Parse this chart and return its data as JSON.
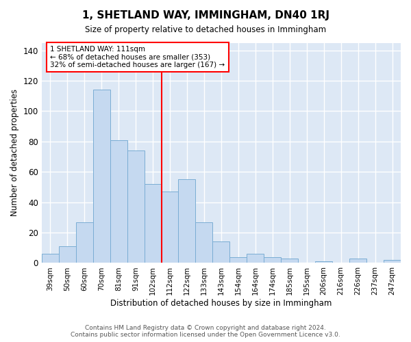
{
  "title": "1, SHETLAND WAY, IMMINGHAM, DN40 1RJ",
  "subtitle": "Size of property relative to detached houses in Immingham",
  "xlabel": "Distribution of detached houses by size in Immingham",
  "ylabel": "Number of detached properties",
  "categories": [
    "39sqm",
    "50sqm",
    "60sqm",
    "70sqm",
    "81sqm",
    "91sqm",
    "102sqm",
    "112sqm",
    "122sqm",
    "133sqm",
    "143sqm",
    "154sqm",
    "164sqm",
    "174sqm",
    "185sqm",
    "195sqm",
    "206sqm",
    "216sqm",
    "226sqm",
    "237sqm",
    "247sqm"
  ],
  "values": [
    6,
    11,
    27,
    114,
    81,
    74,
    52,
    47,
    55,
    27,
    14,
    4,
    6,
    4,
    3,
    0,
    1,
    0,
    3,
    0,
    2
  ],
  "bar_color": "#c5d9f0",
  "bar_edge_color": "#7aadd4",
  "annotation_line1": "1 SHETLAND WAY: 111sqm",
  "annotation_line2": "← 68% of detached houses are smaller (353)",
  "annotation_line3": "32% of semi-detached houses are larger (167) →",
  "vline_index": 7,
  "ylim": [
    0,
    145
  ],
  "yticks": [
    0,
    20,
    40,
    60,
    80,
    100,
    120,
    140
  ],
  "fig_bg_color": "#ffffff",
  "plot_bg_color": "#dde8f5",
  "grid_color": "#ffffff",
  "footer_line1": "Contains HM Land Registry data © Crown copyright and database right 2024.",
  "footer_line2": "Contains public sector information licensed under the Open Government Licence v3.0."
}
